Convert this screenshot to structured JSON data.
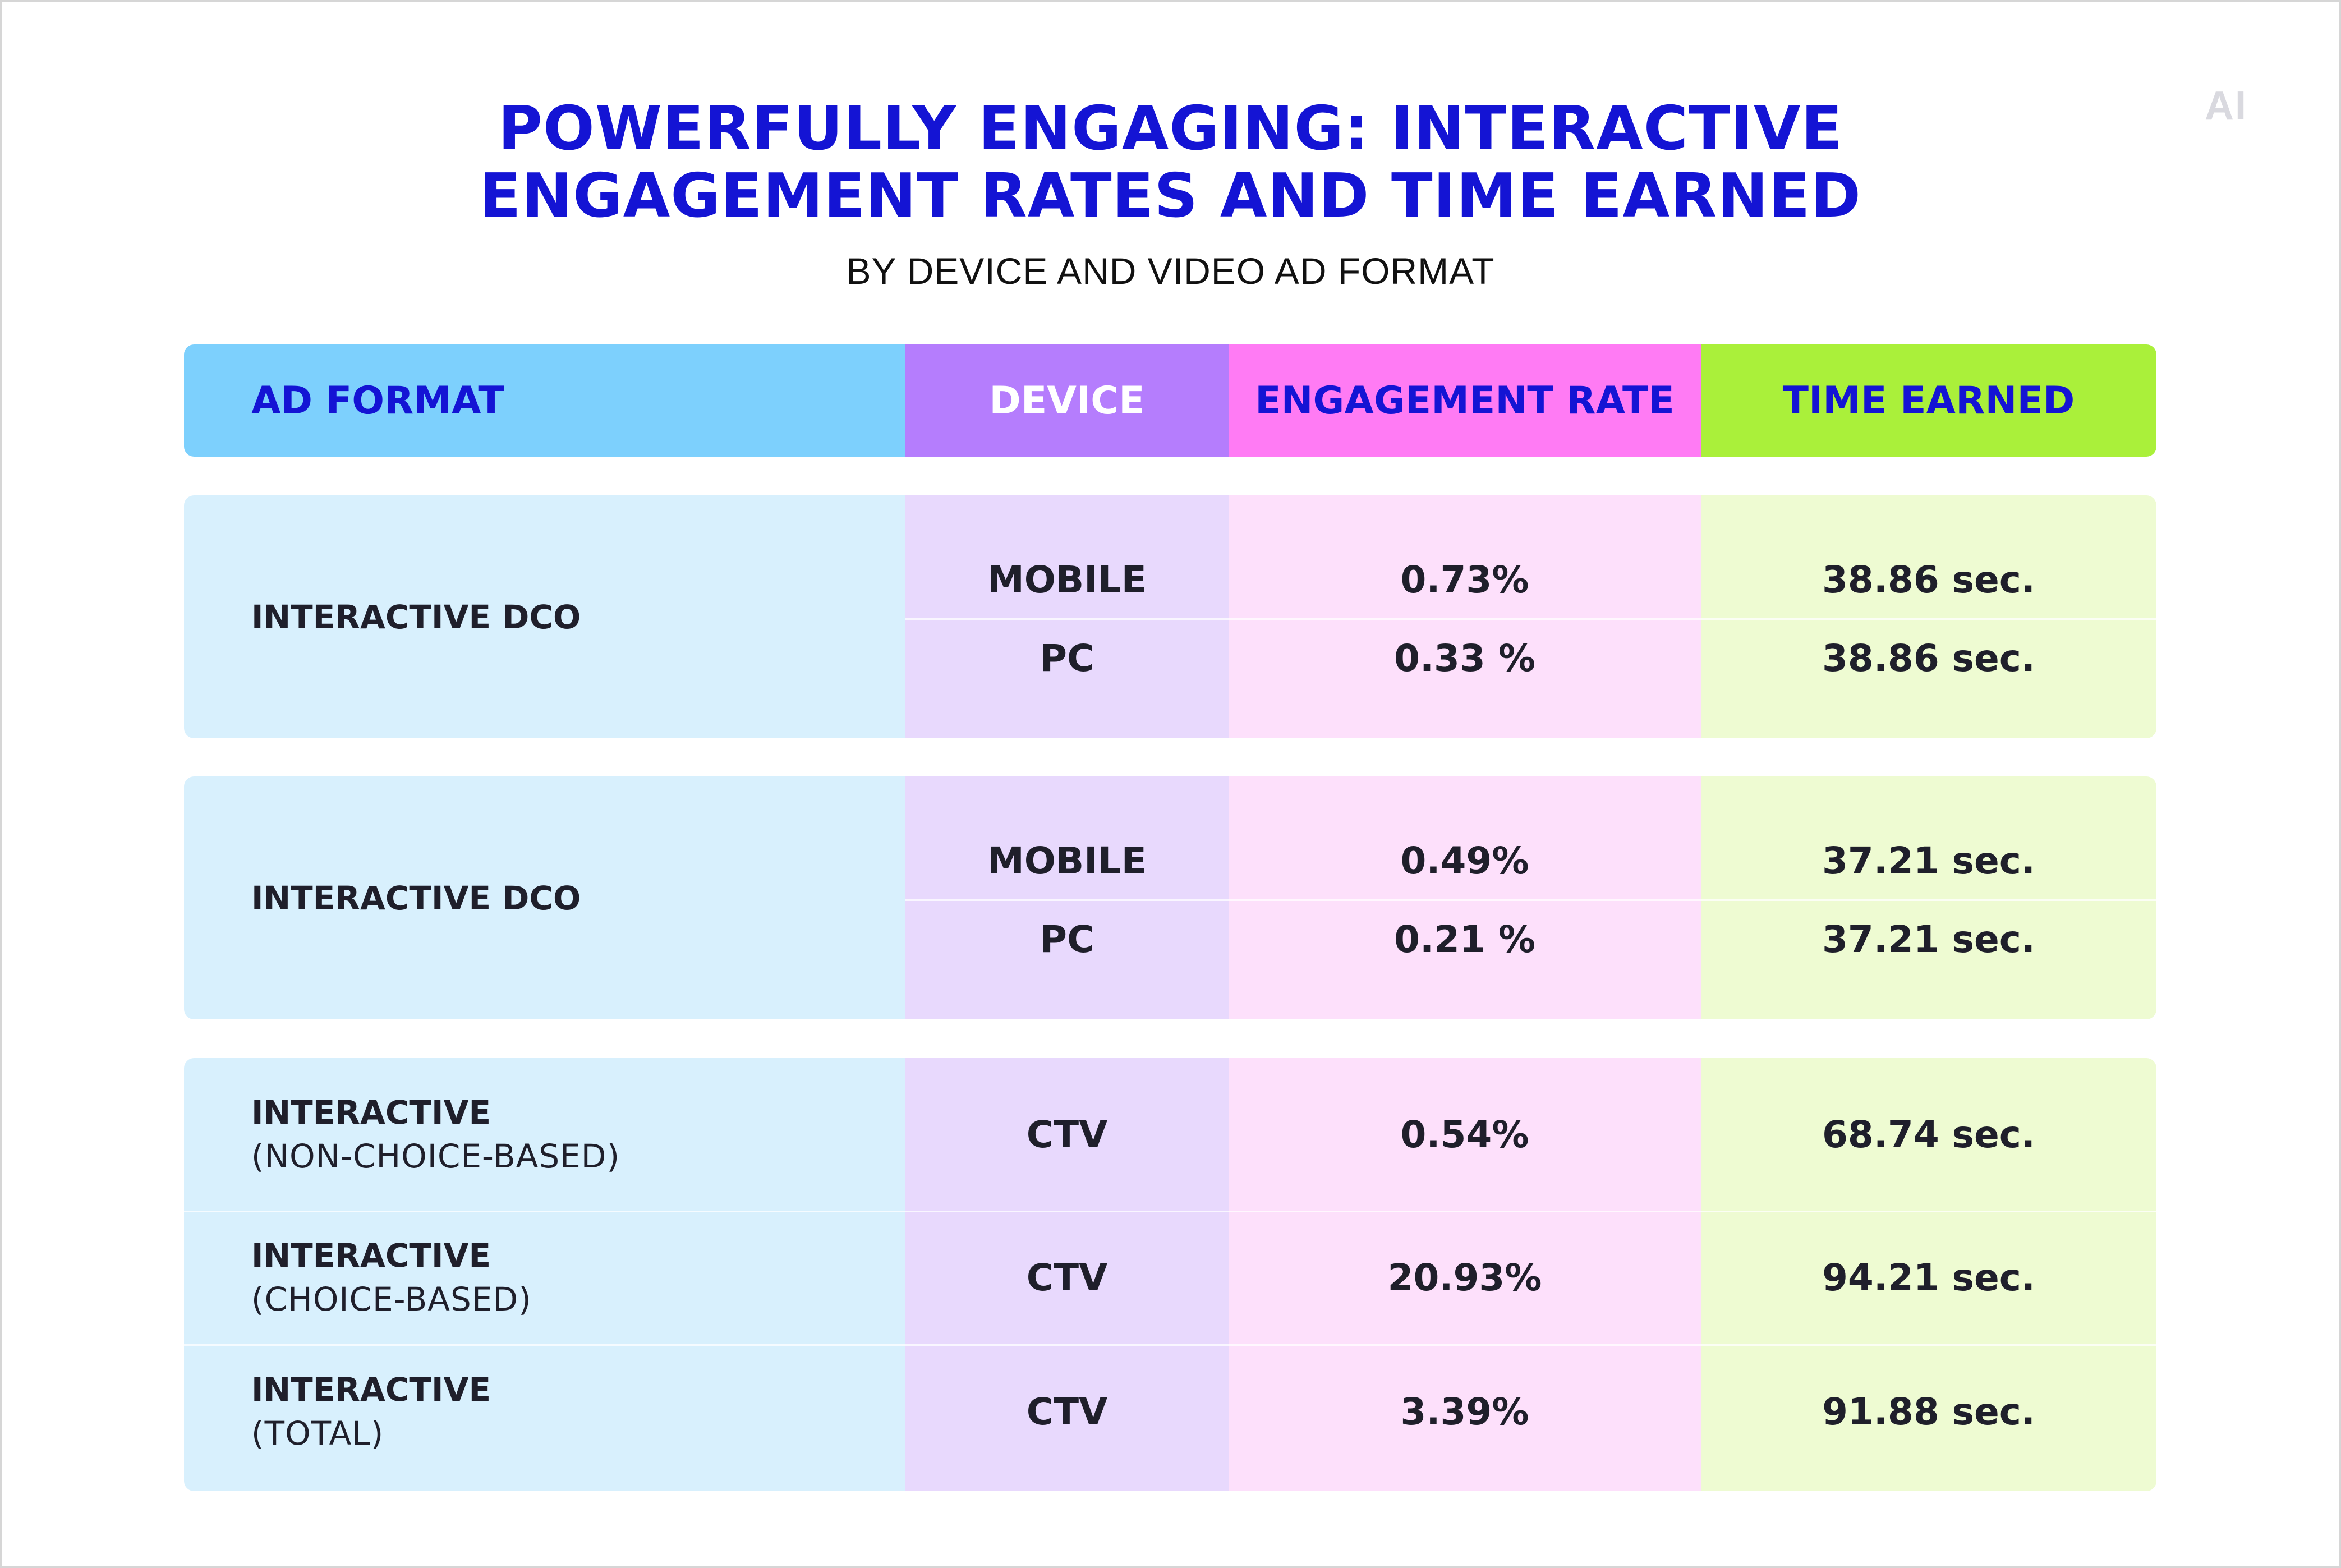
{
  "logo_text": "AI",
  "title_line1": "POWERFULLY ENGAGING: INTERACTIVE",
  "title_line2": "ENGAGEMENT RATES AND TIME EARNED",
  "subtitle": "BY DEVICE AND VIDEO AD FORMAT",
  "colors": {
    "title": "#1414d4",
    "ad_format_header": "#7dd0fd",
    "device_header": "#b57dfd",
    "engagement_rate_header": "#ff7bf4",
    "time_earned_header": "#aaf03a"
  },
  "chart_data": {
    "type": "table",
    "columns": [
      "AD FORMAT",
      "DEVICE",
      "ENGAGEMENT RATE",
      "TIME EARNED"
    ],
    "groups": [
      {
        "ad_format": "INTERACTIVE DCO",
        "rows": [
          {
            "device": "MOBILE",
            "engagement_rate": "0.73%",
            "time_earned": "38.86 sec."
          },
          {
            "device": "PC",
            "engagement_rate": "0.33 %",
            "time_earned": "38.86 sec."
          }
        ]
      },
      {
        "ad_format": "INTERACTIVE DCO",
        "rows": [
          {
            "device": "MOBILE",
            "engagement_rate": "0.49%",
            "time_earned": "37.21 sec."
          },
          {
            "device": "PC",
            "engagement_rate": "0.21 %",
            "time_earned": "37.21 sec."
          }
        ]
      },
      {
        "rows": [
          {
            "ad_format": "INTERACTIVE",
            "ad_format_detail": "(NON-CHOICE-BASED)",
            "device": "CTV",
            "engagement_rate": "0.54%",
            "time_earned": "68.74 sec."
          },
          {
            "ad_format": "INTERACTIVE",
            "ad_format_detail": "(CHOICE-BASED)",
            "device": "CTV",
            "engagement_rate": "20.93%",
            "time_earned": "94.21 sec."
          },
          {
            "ad_format": "INTERACTIVE",
            "ad_format_detail": "(TOTAL)",
            "device": "CTV",
            "engagement_rate": "3.39%",
            "time_earned": "91.88 sec."
          }
        ]
      }
    ]
  }
}
